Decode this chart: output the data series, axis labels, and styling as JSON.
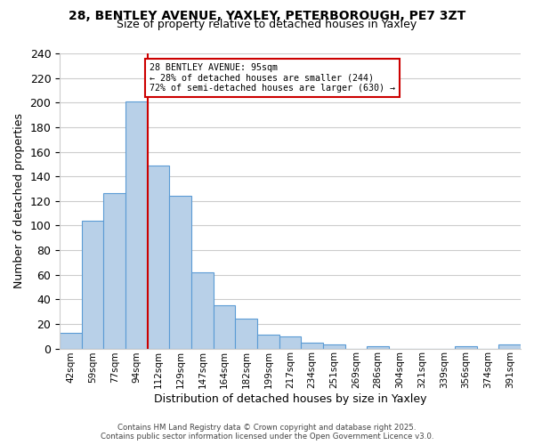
{
  "title_line1": "28, BENTLEY AVENUE, YAXLEY, PETERBOROUGH, PE7 3ZT",
  "title_line2": "Size of property relative to detached houses in Yaxley",
  "xlabel": "Distribution of detached houses by size in Yaxley",
  "ylabel": "Number of detached properties",
  "bar_labels": [
    "42sqm",
    "59sqm",
    "77sqm",
    "94sqm",
    "112sqm",
    "129sqm",
    "147sqm",
    "164sqm",
    "182sqm",
    "199sqm",
    "217sqm",
    "234sqm",
    "251sqm",
    "269sqm",
    "286sqm",
    "304sqm",
    "321sqm",
    "339sqm",
    "356sqm",
    "374sqm",
    "391sqm"
  ],
  "bar_values": [
    13,
    104,
    126,
    201,
    149,
    124,
    62,
    35,
    24,
    11,
    10,
    5,
    3,
    0,
    2,
    0,
    0,
    0,
    2,
    0,
    3
  ],
  "bar_color": "#b8d0e8",
  "bar_edge_color": "#5b9bd5",
  "vline_idx": 3,
  "annotation_text": "28 BENTLEY AVENUE: 95sqm\n← 28% of detached houses are smaller (244)\n72% of semi-detached houses are larger (630) →",
  "annotation_box_color": "#ffffff",
  "annotation_border_color": "#cc0000",
  "vline_color": "#cc0000",
  "ylim": [
    0,
    240
  ],
  "yticks": [
    0,
    20,
    40,
    60,
    80,
    100,
    120,
    140,
    160,
    180,
    200,
    220,
    240
  ],
  "footer": "Contains HM Land Registry data © Crown copyright and database right 2025.\nContains public sector information licensed under the Open Government Licence v3.0.",
  "background_color": "#ffffff",
  "grid_color": "#cccccc"
}
